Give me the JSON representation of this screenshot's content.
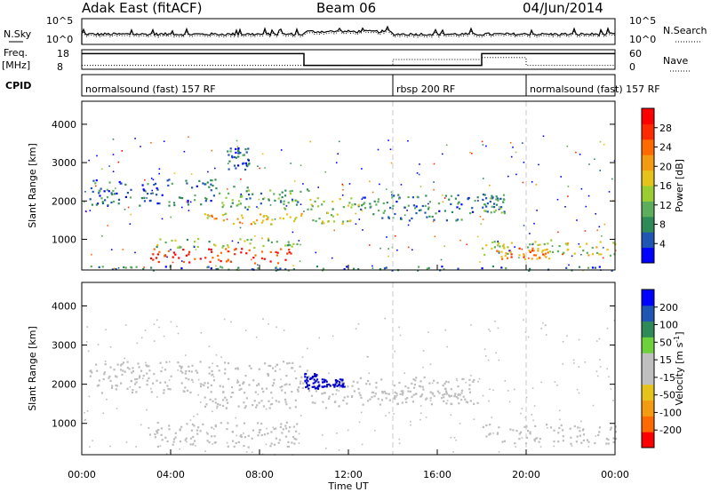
{
  "header": {
    "station": "Adak East (fitACF)",
    "beam": "Beam 06",
    "date": "04/Jun/2014"
  },
  "top_panels": {
    "nsky_label": "N.Sky",
    "nsky_ticks": [
      "10^5",
      "10^0"
    ],
    "nsearch_label": "N.Search",
    "nsearch_ticks": [
      "10^5",
      "10^0"
    ],
    "freq_label": "Freq.",
    "freq_unit": "[MHz]",
    "freq_ticks": [
      "18",
      "8"
    ],
    "nave_label": "Nave",
    "nave_ticks": [
      "60",
      "0"
    ],
    "cpid_label": "CPID",
    "cpid_segments": [
      {
        "label": "normalsound (fast) 157 RF",
        "start_hr": 0,
        "end_hr": 14
      },
      {
        "label": "rbsp 200 RF",
        "start_hr": 14,
        "end_hr": 20
      },
      {
        "label": "normalsound (fast) 157 RF",
        "start_hr": 20,
        "end_hr": 24
      }
    ],
    "freq_steps": [
      {
        "start_hr": 0,
        "end_hr": 10,
        "level": 0.8
      },
      {
        "start_hr": 10,
        "end_hr": 18,
        "level": 0.2
      },
      {
        "start_hr": 18,
        "end_hr": 24,
        "level": 0.8
      }
    ],
    "nave_steps": [
      {
        "start_hr": 0,
        "end_hr": 14,
        "level": 0.2
      },
      {
        "start_hr": 14,
        "end_hr": 18,
        "level": 0.5
      },
      {
        "start_hr": 18,
        "end_hr": 20,
        "level": 0.6
      },
      {
        "start_hr": 20,
        "end_hr": 24,
        "level": 0.2
      }
    ]
  },
  "x_axis": {
    "label": "Time UT",
    "ticks": [
      "00:00",
      "04:00",
      "08:00",
      "12:00",
      "16:00",
      "20:00",
      "00:00"
    ]
  },
  "chart_data": [
    {
      "type": "heatmap",
      "title": "",
      "xlabel": "Time UT",
      "ylabel": "Slant Range [km]",
      "xlim": [
        0,
        24
      ],
      "ylim": [
        200,
        4600
      ],
      "yticks": [
        1000,
        2000,
        3000,
        4000
      ],
      "colorbar": {
        "label": "Power [dB]",
        "ticks": [
          "28",
          "24",
          "20",
          "16",
          "12",
          "8",
          "4"
        ],
        "colors": [
          "#0000ff",
          "#1f56b4",
          "#2e8b57",
          "#5cae5c",
          "#9acd32",
          "#e6c31a",
          "#f39c12",
          "#ff6a00",
          "#ff2a00",
          "#ff0000"
        ]
      },
      "regions": [
        {
          "t0": 3.0,
          "t1": 9.5,
          "r0": 400,
          "r1": 800,
          "v": 26
        },
        {
          "t0": 3.2,
          "t1": 9.8,
          "r0": 800,
          "r1": 1050,
          "v": 12
        },
        {
          "t0": 5.5,
          "t1": 10.0,
          "r0": 1400,
          "r1": 1700,
          "v": 17
        },
        {
          "t0": 0.3,
          "t1": 6.0,
          "r0": 1900,
          "r1": 2600,
          "v": 6
        },
        {
          "t0": 6.0,
          "t1": 10.2,
          "r0": 1800,
          "r1": 2400,
          "v": 9
        },
        {
          "t0": 10.2,
          "t1": 12.5,
          "r0": 1400,
          "r1": 2100,
          "v": 13
        },
        {
          "t0": 12.5,
          "t1": 17.8,
          "r0": 1500,
          "r1": 2200,
          "v": 7
        },
        {
          "t0": 18.0,
          "t1": 24.0,
          "r0": 600,
          "r1": 1000,
          "v": 14
        },
        {
          "t0": 18.5,
          "t1": 21.0,
          "r0": 500,
          "r1": 800,
          "v": 20
        },
        {
          "t0": 18.0,
          "t1": 19.0,
          "r0": 1700,
          "r1": 2200,
          "v": 8
        },
        {
          "t0": 6.5,
          "t1": 7.5,
          "r0": 2800,
          "r1": 3400,
          "v": 5
        },
        {
          "t0": 0.0,
          "t1": 24.0,
          "r0": 200,
          "r1": 320,
          "v": 6
        }
      ]
    },
    {
      "type": "heatmap",
      "title": "",
      "xlabel": "Time UT",
      "ylabel": "Slant Range [km]",
      "xlim": [
        0,
        24
      ],
      "ylim": [
        200,
        4600
      ],
      "yticks": [
        1000,
        2000,
        3000,
        4000
      ],
      "colorbar": {
        "label": "Velocity [m s^-1]",
        "ticks": [
          "200",
          "100",
          "50",
          "15",
          "-15",
          "-50",
          "-100",
          "-200"
        ],
        "colors": [
          "#ff0000",
          "#ff6a00",
          "#f39c12",
          "#e6c31a",
          "#bfbfbf",
          "#bfbfbf",
          "#6cd13a",
          "#2e8b57",
          "#1f56b4",
          "#0000ff"
        ]
      },
      "regions": [
        {
          "t0": 3.0,
          "t1": 9.8,
          "r0": 400,
          "r1": 1050,
          "v": 0
        },
        {
          "t0": 5.5,
          "t1": 10.0,
          "r0": 1400,
          "r1": 1700,
          "v": 0
        },
        {
          "t0": 0.3,
          "t1": 10.2,
          "r0": 1800,
          "r1": 2600,
          "v": 0
        },
        {
          "t0": 10.2,
          "t1": 12.5,
          "r0": 1400,
          "r1": 2100,
          "v": 0
        },
        {
          "t0": 12.5,
          "t1": 17.8,
          "r0": 1500,
          "r1": 2200,
          "v": 0
        },
        {
          "t0": 18.0,
          "t1": 24.0,
          "r0": 500,
          "r1": 1000,
          "v": 0
        },
        {
          "t0": 10.0,
          "t1": 10.6,
          "r0": 1900,
          "r1": 2300,
          "v": 220
        },
        {
          "t0": 10.6,
          "t1": 11.8,
          "r0": 1950,
          "r1": 2150,
          "v": 160
        },
        {
          "t0": 13.0,
          "t1": 17.0,
          "r0": 1650,
          "r1": 1850,
          "v": 30
        }
      ]
    }
  ]
}
